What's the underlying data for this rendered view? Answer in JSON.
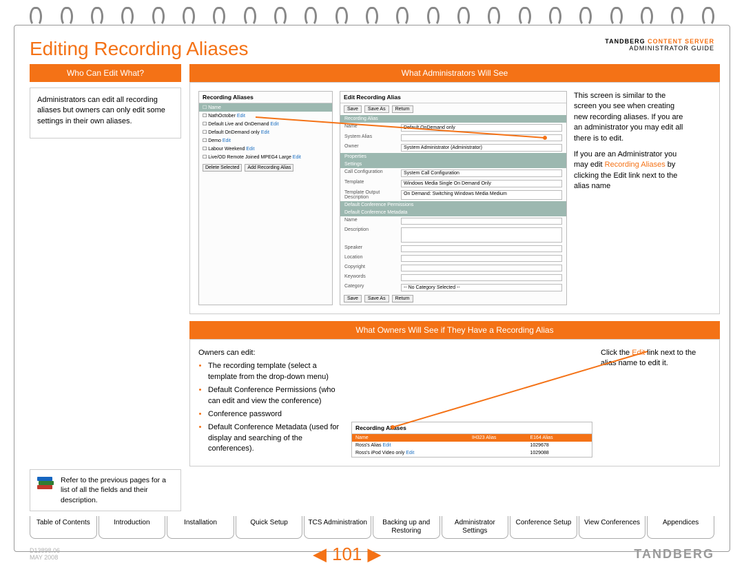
{
  "header": {
    "title": "Editing Recording Aliases",
    "brand": "TANDBERG",
    "product": "CONTENT SERVER",
    "subtitle": "ADMINISTRATOR GUIDE"
  },
  "left_panel": {
    "heading": "Who Can Edit What?",
    "text": "Administrators can edit all recording aliases but owners can only edit some settings in their own aliases.",
    "refer_text": "Refer to the previous pages for a list of all the fields and their description."
  },
  "admin_section": {
    "heading": "What Administrators Will See",
    "shot1_title": "Recording Aliases",
    "shot1_col": "Name",
    "shot1_rows": [
      {
        "name": "NathOctober",
        "edit": "Edit"
      },
      {
        "name": "Default Live and OnDemand",
        "edit": "Edit"
      },
      {
        "name": "Default OnDemand only",
        "edit": "Edit"
      },
      {
        "name": "Demo",
        "edit": "Edit"
      },
      {
        "name": "Labour Weekend",
        "edit": "Edit"
      },
      {
        "name": "Live/OD Remote Joined MPEG4 Large",
        "edit": "Edit"
      }
    ],
    "shot1_btn1": "Delete Selected",
    "shot1_btn2": "Add Recording Alias",
    "shot2_title": "Edit Recording Alias",
    "shot2_btn_save": "Save",
    "shot2_btn_saveas": "Save As",
    "shot2_btn_return": "Return",
    "shot2_sec_recalias": "Recording Alias",
    "shot2_name_lab": "Name",
    "shot2_name_val": "Default OnDemand only",
    "shot2_sysalias_lab": "System Alias",
    "shot2_sysalias_val": "",
    "shot2_owner_lab": "Owner",
    "shot2_owner_val": "System Administrator (Administrator)",
    "shot2_sec_props": "Properties",
    "shot2_sec_settings": "Settings",
    "shot2_callconf_lab": "Call Configuration",
    "shot2_callconf_val": "System Call Configuration",
    "shot2_tmpl_lab": "Template",
    "shot2_tmpl_val": "Windows Media Single On Demand Only",
    "shot2_tmpldesc_lab": "Template Output Description",
    "shot2_tmpldesc_val": "On Demand: Switching Windows Media Medium",
    "shot2_sec_perm": "Default Conference Permissions",
    "shot2_sec_meta": "Default Conference Metadata",
    "shot2_meta_name": "Name",
    "shot2_meta_desc": "Description",
    "shot2_meta_speaker": "Speaker",
    "shot2_meta_location": "Location",
    "shot2_meta_copyright": "Copyright",
    "shot2_meta_keywords": "Keywords",
    "shot2_meta_category": "Category",
    "shot2_meta_category_val": "-- No Category Selected --",
    "right_p1": "This screen is similar to the screen you see when creating new recording aliases. If you are an administrator you may edit all there is to edit.",
    "right_p2a": "If you are an Administrator you may edit ",
    "right_p2b": "Recording Aliases",
    "right_p2c": " by clicking the Edit link next to the alias name"
  },
  "owners_section": {
    "heading": "What Owners Will See if They Have a Recording Alias",
    "intro": "Owners can edit:",
    "bullets": [
      "The recording template (select a template from the drop-down menu)",
      "Default Conference Permissions (who can edit and view the conference)",
      "Conference password",
      "Default Conference Metadata (used for display and searching of the conferences)."
    ],
    "right_a": "Click the ",
    "right_b": "Edit",
    "right_c": " link next to the alias name to edit it.",
    "shot3_title": "Recording Aliases",
    "shot3_col1": "Name",
    "shot3_col2": "IH323 Alias",
    "shot3_col3": "E164 Alias",
    "shot3_rows": [
      {
        "name": "Ross's Alias",
        "edit": "Edit",
        "h323": "",
        "e164": "1029678"
      },
      {
        "name": "Ross's iPod Video only",
        "edit": "Edit",
        "h323": "",
        "e164": "1029088"
      }
    ]
  },
  "tabs": [
    "Table of Contents",
    "Introduction",
    "Installation",
    "Quick Setup",
    "TCS Administration",
    "Backing up and Restoring",
    "Administrator Settings",
    "Conference Setup",
    "View Conferences",
    "Appendices"
  ],
  "active_tab_index": 7,
  "footer": {
    "docid_line1": "D13898.06",
    "docid_line2": "MAY 2008",
    "page": "101",
    "brand": "TANDBERG"
  },
  "colors": {
    "accent": "#f47216",
    "panel_header": "#9cb8b0",
    "link": "#1a6ec1"
  }
}
